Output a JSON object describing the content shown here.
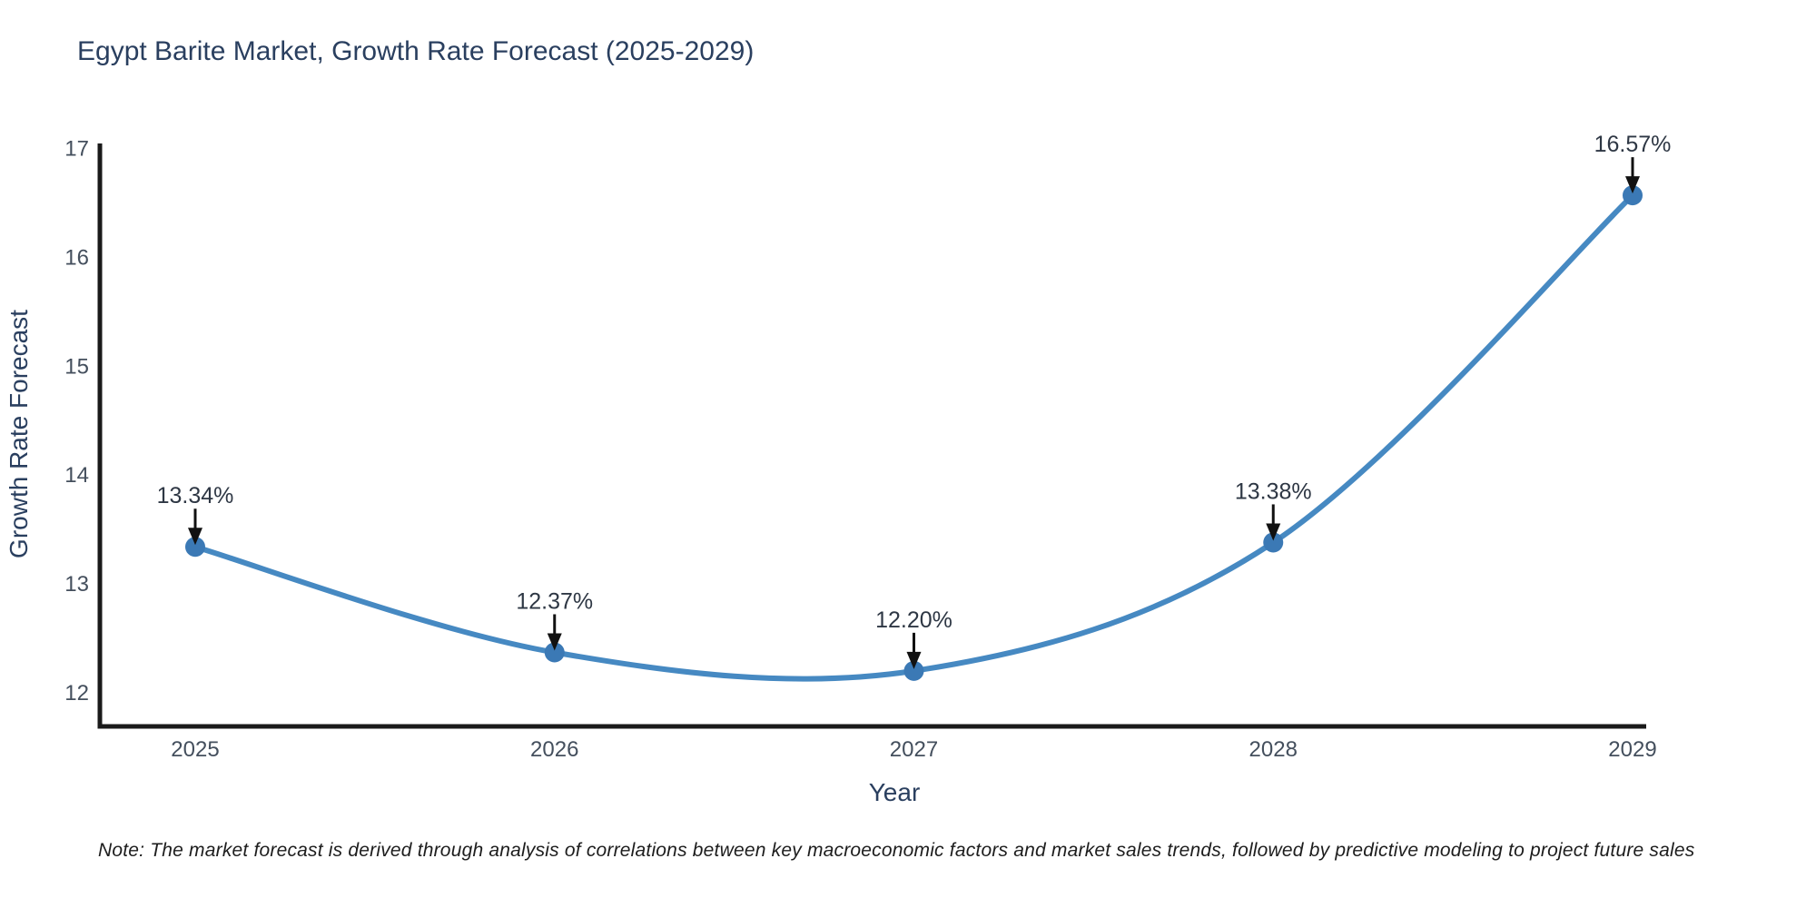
{
  "chart_data": {
    "type": "line",
    "title": "Egypt Barite Market, Growth Rate Forecast (2025-2029)",
    "xlabel": "Year",
    "ylabel": "Growth Rate Forecast",
    "categories": [
      "2025",
      "2026",
      "2027",
      "2028",
      "2029"
    ],
    "series": [
      {
        "name": "Growth Rate Forecast",
        "values": [
          13.34,
          12.37,
          12.2,
          13.38,
          16.57
        ],
        "point_labels": [
          "13.34%",
          "12.37%",
          "12.20%",
          "13.38%",
          "16.57%"
        ]
      }
    ],
    "y_ticks": [
      12,
      13,
      14,
      15,
      16,
      17
    ],
    "ylim": [
      11.69,
      17.03
    ],
    "grid": false,
    "legend_position": "none",
    "line_shape": "spline",
    "line_color": "#4689c2",
    "marker_color": "#3b79b5",
    "axis_color": "#1a1a1a",
    "arrow_color": "#111111",
    "title_color": "#2a3f5f",
    "axis_title_color": "#2a3f5f",
    "tick_color": "#444f5d",
    "annotation_color": "#2e3744"
  },
  "note": "Note: The market forecast is derived through analysis of correlations between key macroeconomic factors and market sales trends, followed by predictive modeling to project future sales"
}
